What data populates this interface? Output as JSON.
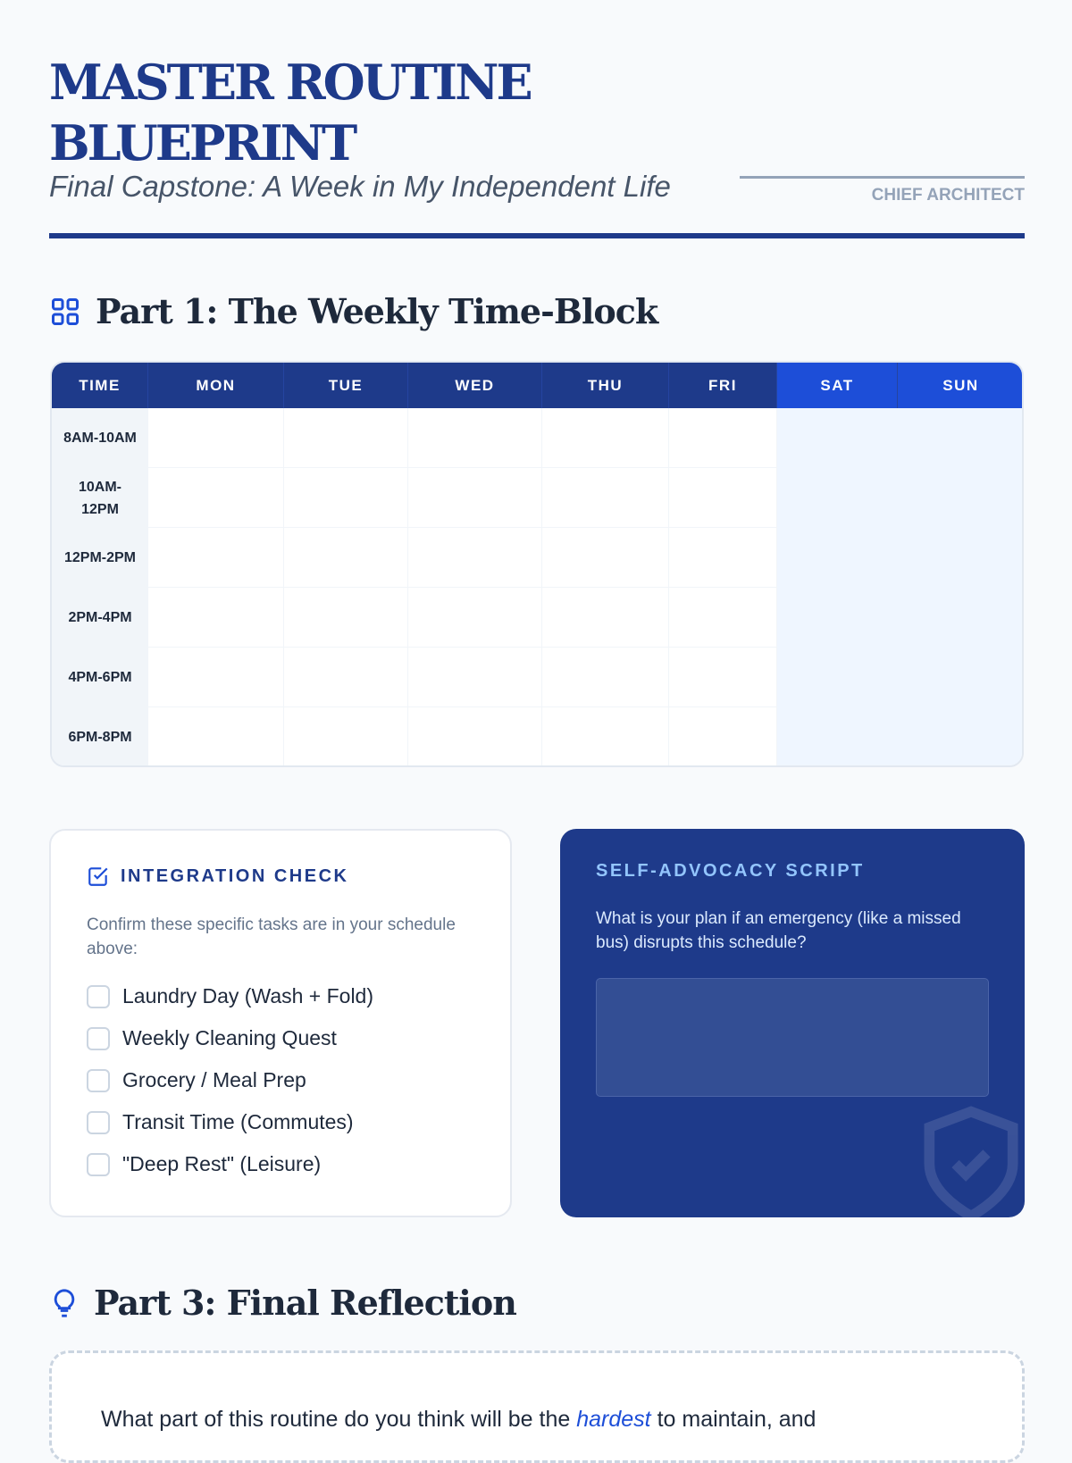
{
  "header": {
    "title": "MASTER ROUTINE BLUEPRINT",
    "subtitle": "Final Capstone: A Week in My Independent Life",
    "signature_label": "CHIEF ARCHITECT"
  },
  "part1": {
    "heading": "Part 1: The Weekly Time-Block",
    "icon": "grid-icon",
    "columns": [
      "TIME",
      "MON",
      "TUE",
      "WED",
      "THU",
      "FRI",
      "SAT",
      "SUN"
    ],
    "rows": [
      "8AM-10AM",
      "10AM-12PM",
      "12PM-2PM",
      "2PM-4PM",
      "4PM-6PM",
      "6PM-8PM"
    ]
  },
  "integration": {
    "icon": "checkbox-icon",
    "title": "INTEGRATION CHECK",
    "description": "Confirm these specific tasks are in your schedule above:",
    "items": [
      "Laundry Day (Wash + Fold)",
      "Weekly Cleaning Quest",
      "Grocery / Meal Prep",
      "Transit Time (Commutes)",
      "\"Deep Rest\" (Leisure)"
    ]
  },
  "advocacy": {
    "title": "SELF-ADVOCACY SCRIPT",
    "question": "What is your plan if an emergency (like a missed bus) disrupts this schedule?",
    "answer": "",
    "icon": "shield-check-icon"
  },
  "part3": {
    "heading": "Part 3: Final Reflection",
    "icon": "lightbulb-icon",
    "question_pre": "What part of this routine do you think will be the ",
    "question_em": "hardest",
    "question_post": " to maintain, and"
  },
  "colors": {
    "navy": "#1e3a8a",
    "weekend": "#1d4ed8",
    "accent": "#1d4ed8"
  }
}
